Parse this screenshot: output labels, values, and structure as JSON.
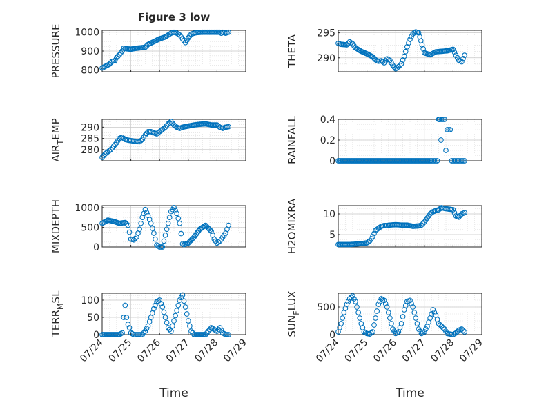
{
  "figure": {
    "title": "Figure 3 low",
    "xlabel": "Time"
  },
  "colors": {
    "marker": "#0072bd",
    "axis": "#262626",
    "grid": "#dcdcdc"
  },
  "chart_data": [
    {
      "id": "pressure",
      "type": "scatter",
      "ylabel": "PRESSURE",
      "xlim": [
        0,
        5
      ],
      "ylim": [
        790,
        1010
      ],
      "yticks": [
        800,
        900,
        1000
      ],
      "yticklabels": [
        "800",
        "900",
        "1000"
      ],
      "xticks": [
        0,
        1,
        2,
        3,
        4,
        5
      ],
      "xticklabels": [],
      "series": [
        {
          "x": [
            0.0,
            0.25,
            0.35,
            0.45,
            0.5,
            0.6,
            0.7,
            0.75,
            0.85,
            1.0,
            1.2,
            1.5,
            1.6,
            1.8,
            2.0,
            2.2,
            2.3,
            2.4,
            2.5,
            2.6,
            2.7,
            2.8,
            2.9,
            3.0,
            3.1,
            3.2,
            3.3,
            3.5,
            3.7,
            3.9,
            4.1,
            4.15,
            4.2,
            4.3,
            4.4
          ],
          "y": [
            810,
            830,
            845,
            850,
            865,
            880,
            900,
            915,
            912,
            910,
            915,
            920,
            935,
            950,
            965,
            975,
            985,
            995,
            1000,
            995,
            985,
            965,
            945,
            970,
            990,
            995,
            998,
            1000,
            1000,
            1000,
            1000,
            995,
            1000,
            995,
            1000
          ]
        }
      ]
    },
    {
      "id": "theta",
      "type": "scatter",
      "ylabel": "THETA",
      "xlim": [
        0,
        5
      ],
      "ylim": [
        287.2,
        295.5
      ],
      "yticks": [
        290,
        295
      ],
      "yticklabels": [
        "290",
        "295"
      ],
      "xticks": [
        0,
        1,
        2,
        3,
        4,
        5
      ],
      "xticklabels": [],
      "series": [
        {
          "x": [
            0.0,
            0.1,
            0.3,
            0.4,
            0.5,
            0.6,
            0.8,
            1.0,
            1.2,
            1.3,
            1.4,
            1.5,
            1.6,
            1.7,
            1.8,
            1.9,
            2.0,
            2.1,
            2.2,
            2.3,
            2.4,
            2.5,
            2.6,
            2.7,
            2.8,
            3.0,
            3.2,
            3.4,
            3.6,
            3.8,
            4.0,
            4.1,
            4.2,
            4.3,
            4.4
          ],
          "y": [
            292.9,
            292.7,
            292.6,
            293.2,
            292.8,
            292.0,
            291.3,
            290.8,
            290.2,
            289.6,
            289.3,
            289.4,
            289.0,
            289.8,
            289.5,
            288.5,
            287.8,
            288.2,
            288.8,
            290.3,
            292.2,
            293.7,
            294.8,
            295.2,
            295.0,
            291.0,
            290.6,
            291.2,
            291.3,
            291.4,
            291.7,
            290.5,
            289.5,
            289.2,
            290.5
          ]
        }
      ]
    },
    {
      "id": "air_temp",
      "type": "scatter",
      "ylabel": "AIR_TEMP",
      "ylabel_main": "AIR",
      "ylabel_sub": "T",
      "ylabel_tail": "EMP",
      "xlim": [
        0,
        5
      ],
      "ylim": [
        275,
        293.5
      ],
      "yticks": [
        280,
        285,
        290
      ],
      "yticklabels": [
        "280",
        "285",
        "290"
      ],
      "xticks": [
        0,
        1,
        2,
        3,
        4,
        5
      ],
      "xticklabels": [],
      "series": [
        {
          "x": [
            0.0,
            0.1,
            0.2,
            0.3,
            0.4,
            0.5,
            0.6,
            0.7,
            0.8,
            0.9,
            1.0,
            1.1,
            1.2,
            1.3,
            1.4,
            1.5,
            1.6,
            1.7,
            1.8,
            1.9,
            2.0,
            2.1,
            2.2,
            2.3,
            2.4,
            2.5,
            2.6,
            2.7,
            2.8,
            3.0,
            3.2,
            3.4,
            3.6,
            3.8,
            4.0,
            4.1,
            4.2,
            4.3,
            4.4
          ],
          "y": [
            276.5,
            278.0,
            279.0,
            280.0,
            281.5,
            283.0,
            285.0,
            285.5,
            284.5,
            284.2,
            284.0,
            283.8,
            283.7,
            283.5,
            284.5,
            286.5,
            288.0,
            288.0,
            287.5,
            287.0,
            288.0,
            289.0,
            290.0,
            291.5,
            292.5,
            291.0,
            290.0,
            289.5,
            290.0,
            290.5,
            291.0,
            291.3,
            291.5,
            291.0,
            291.0,
            290.0,
            289.5,
            290.0,
            290.2
          ]
        }
      ]
    },
    {
      "id": "rainfall",
      "type": "scatter",
      "ylabel": "RAINFALL",
      "xlim": [
        0,
        5
      ],
      "ylim": [
        0,
        0.4
      ],
      "yticks": [
        0,
        0.2,
        0.4
      ],
      "yticklabels": [
        "0",
        "0.2",
        "0.4"
      ],
      "xticks": [
        0,
        1,
        2,
        3,
        4,
        5
      ],
      "xticklabels": [],
      "series": [
        {
          "x": [
            0.0,
            0.2,
            0.4,
            0.6,
            0.8,
            1.0,
            1.2,
            1.4,
            1.6,
            1.8,
            2.0,
            2.2,
            2.4,
            2.6,
            2.8,
            3.0,
            3.2,
            3.3,
            3.4,
            3.45,
            3.5,
            3.52,
            3.55,
            3.58,
            3.6,
            3.65,
            3.7,
            3.75,
            3.8,
            3.85,
            3.9,
            3.95,
            4.0,
            4.1,
            4.2,
            4.3,
            4.4
          ],
          "y": [
            0,
            0,
            0,
            0,
            0,
            0,
            0,
            0,
            0,
            0,
            0,
            0,
            0,
            0,
            0,
            0,
            0,
            0,
            0,
            0,
            0.4,
            0.4,
            0.4,
            0.2,
            0.4,
            0.4,
            0.4,
            0.1,
            0.3,
            0.3,
            0.3,
            0,
            0,
            0,
            0,
            0,
            0
          ]
        }
      ]
    },
    {
      "id": "mixdepth",
      "type": "scatter",
      "ylabel": "MIXDEPTH",
      "xlim": [
        0,
        5
      ],
      "ylim": [
        0,
        1050
      ],
      "yticks": [
        0,
        500,
        1000
      ],
      "yticklabels": [
        "0",
        "500",
        "1000"
      ],
      "xticks": [
        0,
        1,
        2,
        3,
        4,
        5
      ],
      "xticklabels": [],
      "series": [
        {
          "x": [
            0.0,
            0.2,
            0.4,
            0.6,
            0.8,
            0.9,
            1.0,
            1.1,
            1.2,
            1.3,
            1.4,
            1.5,
            1.6,
            1.7,
            1.8,
            1.9,
            2.0,
            2.1,
            2.2,
            2.3,
            2.4,
            2.5,
            2.6,
            2.7,
            2.8,
            2.85,
            3.0,
            3.2,
            3.4,
            3.6,
            3.8,
            3.9,
            4.0,
            4.1,
            4.2,
            4.3,
            4.4
          ],
          "y": [
            600,
            680,
            650,
            600,
            620,
            550,
            200,
            180,
            250,
            450,
            750,
            950,
            800,
            600,
            350,
            50,
            0,
            0,
            300,
            600,
            900,
            1000,
            850,
            600,
            80,
            60,
            100,
            250,
            450,
            550,
            400,
            200,
            100,
            150,
            250,
            350,
            550
          ]
        }
      ]
    },
    {
      "id": "h2omixra",
      "type": "scatter",
      "ylabel": "H2OMIXRA",
      "xlim": [
        0,
        5
      ],
      "ylim": [
        2,
        12
      ],
      "yticks": [
        5,
        10
      ],
      "yticklabels": [
        "5",
        "10"
      ],
      "xticks": [
        0,
        1,
        2,
        3,
        4,
        5
      ],
      "xticklabels": [],
      "series": [
        {
          "x": [
            0.0,
            0.2,
            0.4,
            0.6,
            0.8,
            1.0,
            1.1,
            1.2,
            1.3,
            1.4,
            1.5,
            1.6,
            1.7,
            1.8,
            2.0,
            2.2,
            2.4,
            2.6,
            2.8,
            2.9,
            3.0,
            3.1,
            3.2,
            3.3,
            3.4,
            3.5,
            3.6,
            3.7,
            3.8,
            3.9,
            4.0,
            4.1,
            4.2,
            4.3,
            4.4
          ],
          "y": [
            2.6,
            2.6,
            2.6,
            2.7,
            2.8,
            3.0,
            3.5,
            4.5,
            6.0,
            6.5,
            7.0,
            7.2,
            7.2,
            7.3,
            7.4,
            7.3,
            7.3,
            7.0,
            7.1,
            7.3,
            8.0,
            9.0,
            10.0,
            10.5,
            10.8,
            11.0,
            11.5,
            11.3,
            11.2,
            11.1,
            11.0,
            9.5,
            9.2,
            10.0,
            10.3
          ]
        }
      ]
    },
    {
      "id": "terr_msl",
      "type": "scatter",
      "ylabel": "TERR_MSL",
      "ylabel_main": "TERR",
      "ylabel_sub": "M",
      "ylabel_tail": "SL",
      "xlim": [
        0,
        5
      ],
      "ylim": [
        0,
        120
      ],
      "yticks": [
        0,
        50,
        100
      ],
      "yticklabels": [
        "0",
        "50",
        "100"
      ],
      "xticks": [
        0,
        1,
        2,
        3,
        4,
        5
      ],
      "xticklabels": [
        "07/24",
        "07/25",
        "07/26",
        "07/27",
        "07/28",
        "07/29"
      ],
      "series": [
        {
          "x": [
            0.0,
            0.2,
            0.4,
            0.6,
            0.7,
            0.75,
            0.8,
            0.85,
            0.9,
            0.95,
            1.0,
            1.1,
            1.2,
            1.3,
            1.4,
            1.5,
            1.6,
            1.7,
            1.8,
            1.9,
            2.0,
            2.1,
            2.2,
            2.3,
            2.4,
            2.5,
            2.6,
            2.7,
            2.8,
            2.9,
            3.0,
            3.1,
            3.2,
            3.4,
            3.6,
            3.7,
            3.8,
            3.9,
            4.0,
            4.1,
            4.2,
            4.3,
            4.4
          ],
          "y": [
            0,
            0,
            0,
            0,
            5,
            50,
            85,
            50,
            30,
            20,
            5,
            0,
            0,
            0,
            0,
            10,
            25,
            50,
            75,
            95,
            100,
            80,
            50,
            20,
            10,
            40,
            70,
            100,
            115,
            80,
            40,
            10,
            0,
            0,
            0,
            10,
            20,
            15,
            10,
            20,
            5,
            0,
            0
          ]
        }
      ]
    },
    {
      "id": "sun_flux",
      "type": "scatter",
      "ylabel": "SUN_FLUX",
      "ylabel_main": "SUN",
      "ylabel_sub": "F",
      "ylabel_tail": "LUX",
      "xlim": [
        0,
        5
      ],
      "ylim": [
        0,
        750
      ],
      "yticks": [
        0,
        500
      ],
      "yticklabels": [
        "0",
        "500"
      ],
      "xticks": [
        0,
        1,
        2,
        3,
        4,
        5
      ],
      "xticklabels": [
        "07/24",
        "07/25",
        "07/26",
        "07/27",
        "07/28",
        "07/29"
      ],
      "series": [
        {
          "x": [
            0.0,
            0.1,
            0.2,
            0.3,
            0.4,
            0.5,
            0.6,
            0.7,
            0.8,
            0.9,
            1.0,
            1.1,
            1.2,
            1.3,
            1.4,
            1.5,
            1.6,
            1.7,
            1.8,
            1.9,
            2.0,
            2.1,
            2.2,
            2.3,
            2.4,
            2.5,
            2.6,
            2.7,
            2.8,
            2.9,
            3.0,
            3.1,
            3.2,
            3.3,
            3.4,
            3.5,
            3.6,
            3.7,
            3.8,
            3.9,
            4.0,
            4.1,
            4.2,
            4.3,
            4.4
          ],
          "y": [
            50,
            200,
            400,
            550,
            650,
            700,
            600,
            400,
            200,
            50,
            20,
            10,
            50,
            300,
            550,
            650,
            620,
            500,
            300,
            100,
            20,
            50,
            200,
            450,
            600,
            620,
            500,
            300,
            100,
            20,
            50,
            150,
            300,
            450,
            350,
            200,
            150,
            100,
            20,
            10,
            0,
            30,
            80,
            100,
            50
          ]
        }
      ]
    }
  ]
}
